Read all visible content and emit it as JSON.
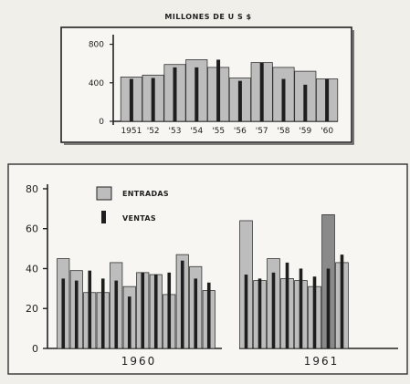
{
  "chart_data": [
    {
      "type": "bar",
      "title": "MILLONES DE U S $",
      "categories": [
        "1951",
        "'52",
        "'53",
        "'54",
        "'55",
        "'56",
        "'57",
        "'58",
        "'59",
        "'60"
      ],
      "y_ticks": [
        "0",
        "400",
        "800"
      ],
      "ylim": [
        0,
        900
      ],
      "grid": false,
      "series": [
        {
          "name": "ENTRADAS",
          "values": [
            460,
            480,
            590,
            640,
            560,
            450,
            610,
            560,
            520,
            440
          ]
        },
        {
          "name": "VENTAS",
          "values": [
            440,
            450,
            560,
            560,
            640,
            420,
            610,
            440,
            380,
            440
          ]
        }
      ],
      "colors": {
        "entradas": "#bdbdbd",
        "ventas": "#1e1e1e"
      }
    },
    {
      "type": "bar",
      "y_ticks": [
        "0",
        "20",
        "40",
        "60",
        "80"
      ],
      "ylim": [
        0,
        85
      ],
      "grid": false,
      "legend_position": "top-left",
      "legend": [
        {
          "label": "ENTRADAS",
          "swatch": "box"
        },
        {
          "label": "VENTAS",
          "swatch": "bar"
        }
      ],
      "panels": [
        {
          "label": "1960",
          "series": [
            {
              "name": "ENTRADAS",
              "values": [
                45,
                39,
                28,
                28,
                43,
                31,
                38,
                37,
                27,
                47,
                41,
                29
              ]
            },
            {
              "name": "VENTAS",
              "values": [
                35,
                34,
                39,
                35,
                34,
                26,
                38,
                37,
                38,
                44,
                35,
                33
              ]
            }
          ]
        },
        {
          "label": "1961",
          "series": [
            {
              "name": "ENTRADAS",
              "values": [
                64,
                34,
                45,
                35,
                34,
                31,
                67,
                43
              ]
            },
            {
              "name": "VENTAS",
              "values": [
                37,
                35,
                38,
                43,
                40,
                36,
                40,
                47
              ]
            }
          ]
        }
      ],
      "colors": {
        "entradas": "#bdbdbd",
        "entradas_dark": "#8a8a8a",
        "ventas": "#1e1e1e"
      }
    }
  ]
}
